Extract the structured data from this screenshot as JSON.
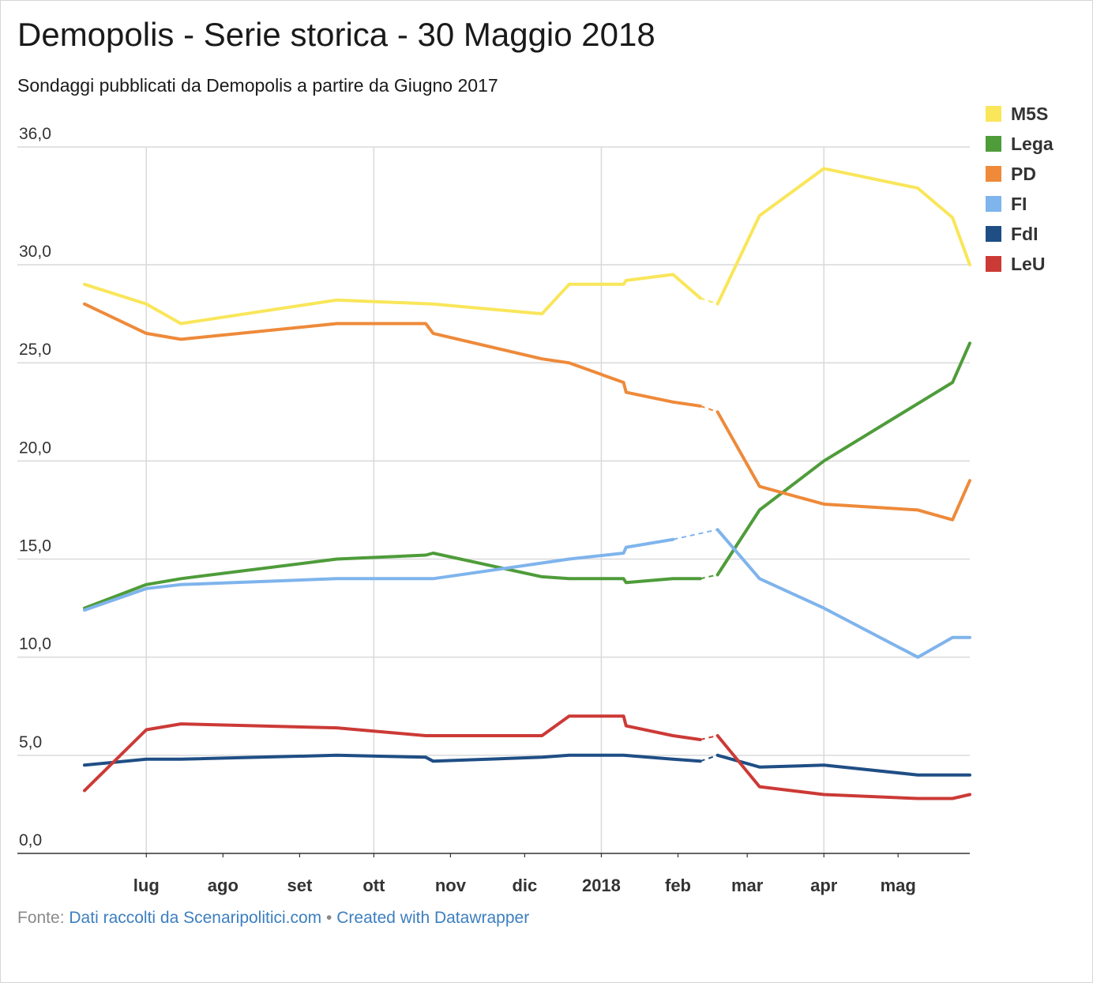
{
  "title": "Demopolis - Serie storica - 30 Maggio 2018",
  "subtitle": "Sondaggi pubblicati da Demopolis a partire da Giugno 2017",
  "footer": {
    "prefix": "Fonte:",
    "source_link": "Dati raccolti da Scenaripolitici.com",
    "separator": "•",
    "credit_link": "Created with Datawrapper"
  },
  "chart_data": {
    "type": "line",
    "title": "Demopolis - Serie storica - 30 Maggio 2018",
    "subtitle": "Sondaggi pubblicati da Demopolis a partire da Giugno 2017",
    "xlabel": "",
    "ylabel": "",
    "ylim": [
      0,
      36
    ],
    "y_ticks": [
      "0,0",
      "5,0",
      "10,0",
      "15,0",
      "20,0",
      "25,0",
      "30,0",
      "36,0"
    ],
    "y_tick_values": [
      0,
      5,
      10,
      15,
      20,
      25,
      30,
      36
    ],
    "x_ticks": [
      {
        "label": "lug",
        "date": "2017-07-01"
      },
      {
        "label": "ago",
        "date": "2017-08-01"
      },
      {
        "label": "set",
        "date": "2017-09-01"
      },
      {
        "label": "ott",
        "date": "2017-10-01"
      },
      {
        "label": "nov",
        "date": "2017-11-01"
      },
      {
        "label": "dic",
        "date": "2017-12-01"
      },
      {
        "label": "2018",
        "date": "2018-01-01"
      },
      {
        "label": "feb",
        "date": "2018-02-01"
      },
      {
        "label": "mar",
        "date": "2018-03-01"
      },
      {
        "label": "apr",
        "date": "2018-04-01"
      },
      {
        "label": "mag",
        "date": "2018-05-01"
      }
    ],
    "x_gridlines": [
      "2017-07-01",
      "2017-10-01",
      "2018-01-01",
      "2018-04-01"
    ],
    "x_range": [
      "2017-06-06",
      "2018-05-30"
    ],
    "gap_after": "2018-02-15",
    "legend_position": "right",
    "series": [
      {
        "name": "M5S",
        "color": "#f9e65a",
        "points": [
          [
            "2017-06-06",
            29.0
          ],
          [
            "2017-07-01",
            28.0
          ],
          [
            "2017-07-15",
            27.0
          ],
          [
            "2017-09-16",
            28.2
          ],
          [
            "2017-10-25",
            28.0
          ],
          [
            "2017-12-08",
            27.5
          ],
          [
            "2017-12-19",
            29.0
          ],
          [
            "2018-01-10",
            29.0
          ],
          [
            "2018-01-11",
            29.2
          ],
          [
            "2018-01-30",
            29.5
          ],
          [
            "2018-02-10",
            28.3
          ],
          [
            "2018-02-17",
            28.0
          ],
          [
            "2018-03-06",
            32.5
          ],
          [
            "2018-04-01",
            34.9
          ],
          [
            "2018-05-09",
            33.9
          ],
          [
            "2018-05-23",
            32.4
          ],
          [
            "2018-05-30",
            30.0
          ]
        ]
      },
      {
        "name": "Lega",
        "color": "#4e9c3a",
        "points": [
          [
            "2017-06-06",
            12.5
          ],
          [
            "2017-07-01",
            13.7
          ],
          [
            "2017-07-15",
            14.0
          ],
          [
            "2017-09-16",
            15.0
          ],
          [
            "2017-10-22",
            15.2
          ],
          [
            "2017-10-25",
            15.3
          ],
          [
            "2017-12-08",
            14.1
          ],
          [
            "2017-12-19",
            14.0
          ],
          [
            "2018-01-10",
            14.0
          ],
          [
            "2018-01-11",
            13.8
          ],
          [
            "2018-01-30",
            14.0
          ],
          [
            "2018-02-10",
            14.0
          ],
          [
            "2018-02-17",
            14.2
          ],
          [
            "2018-03-06",
            17.5
          ],
          [
            "2018-04-01",
            20.0
          ],
          [
            "2018-05-23",
            24.0
          ],
          [
            "2018-05-30",
            26.0
          ]
        ]
      },
      {
        "name": "PD",
        "color": "#ee8a3a",
        "points": [
          [
            "2017-06-06",
            28.0
          ],
          [
            "2017-07-01",
            26.5
          ],
          [
            "2017-07-15",
            26.2
          ],
          [
            "2017-09-16",
            27.0
          ],
          [
            "2017-10-22",
            27.0
          ],
          [
            "2017-10-25",
            26.5
          ],
          [
            "2017-12-08",
            25.2
          ],
          [
            "2017-12-19",
            25.0
          ],
          [
            "2018-01-10",
            24.0
          ],
          [
            "2018-01-11",
            23.5
          ],
          [
            "2018-01-30",
            23.0
          ],
          [
            "2018-02-10",
            22.8
          ],
          [
            "2018-02-17",
            22.5
          ],
          [
            "2018-03-06",
            18.7
          ],
          [
            "2018-04-01",
            17.8
          ],
          [
            "2018-05-09",
            17.5
          ],
          [
            "2018-05-23",
            17.0
          ],
          [
            "2018-05-30",
            19.0
          ]
        ]
      },
      {
        "name": "FI",
        "color": "#7fb4ec",
        "points": [
          [
            "2017-06-06",
            12.4
          ],
          [
            "2017-07-01",
            13.5
          ],
          [
            "2017-07-15",
            13.7
          ],
          [
            "2017-09-16",
            14.0
          ],
          [
            "2017-10-25",
            14.0
          ],
          [
            "2017-12-08",
            14.8
          ],
          [
            "2017-12-19",
            15.0
          ],
          [
            "2018-01-10",
            15.3
          ],
          [
            "2018-01-11",
            15.6
          ],
          [
            "2018-01-30",
            16.0
          ],
          [
            "2018-02-17",
            16.5
          ],
          [
            "2018-03-06",
            14.0
          ],
          [
            "2018-04-01",
            12.5
          ],
          [
            "2018-05-09",
            10.0
          ],
          [
            "2018-05-23",
            11.0
          ],
          [
            "2018-05-30",
            11.0
          ]
        ]
      },
      {
        "name": "FdI",
        "color": "#1f4e85",
        "points": [
          [
            "2017-06-06",
            4.5
          ],
          [
            "2017-07-01",
            4.8
          ],
          [
            "2017-07-15",
            4.8
          ],
          [
            "2017-09-16",
            5.0
          ],
          [
            "2017-10-22",
            4.9
          ],
          [
            "2017-10-25",
            4.7
          ],
          [
            "2017-12-08",
            4.9
          ],
          [
            "2017-12-19",
            5.0
          ],
          [
            "2018-01-10",
            5.0
          ],
          [
            "2018-01-30",
            4.8
          ],
          [
            "2018-02-10",
            4.7
          ],
          [
            "2018-02-17",
            5.0
          ],
          [
            "2018-03-06",
            4.4
          ],
          [
            "2018-04-01",
            4.5
          ],
          [
            "2018-05-09",
            4.0
          ],
          [
            "2018-05-30",
            4.0
          ]
        ]
      },
      {
        "name": "LeU",
        "color": "#cc3a36",
        "points": [
          [
            "2017-06-06",
            3.2
          ],
          [
            "2017-07-01",
            6.3
          ],
          [
            "2017-07-15",
            6.6
          ],
          [
            "2017-09-16",
            6.4
          ],
          [
            "2017-10-22",
            6.0
          ],
          [
            "2017-12-08",
            6.0
          ],
          [
            "2017-12-19",
            7.0
          ],
          [
            "2018-01-10",
            7.0
          ],
          [
            "2018-01-11",
            6.5
          ],
          [
            "2018-01-30",
            6.0
          ],
          [
            "2018-02-10",
            5.8
          ],
          [
            "2018-02-17",
            6.0
          ],
          [
            "2018-03-06",
            3.4
          ],
          [
            "2018-04-01",
            3.0
          ],
          [
            "2018-05-09",
            2.8
          ],
          [
            "2018-05-23",
            2.8
          ],
          [
            "2018-05-30",
            3.0
          ]
        ]
      }
    ]
  }
}
